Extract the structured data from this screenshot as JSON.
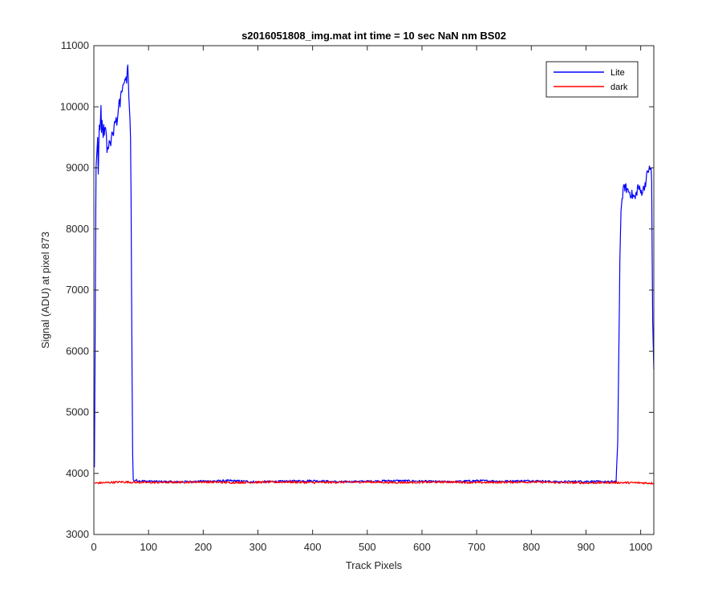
{
  "chart_data": {
    "type": "line",
    "title": "s2016051808_img.mat int time = 10 sec  NaN nm BS02",
    "xlabel": "Track Pixels",
    "ylabel": "Signal (ADU) at pixel 873",
    "xlim": [
      0,
      1024
    ],
    "ylim": [
      3000,
      11000
    ],
    "xticks": [
      0,
      100,
      200,
      300,
      400,
      500,
      600,
      700,
      800,
      900,
      1000
    ],
    "yticks": [
      3000,
      4000,
      5000,
      6000,
      7000,
      8000,
      9000,
      10000,
      11000
    ],
    "grid": false,
    "legend_position": "top-right",
    "series": [
      {
        "name": "Lite",
        "color": "#0000ff",
        "x": [
          1,
          4,
          7,
          8,
          9,
          10,
          11,
          12,
          13,
          14,
          15,
          16,
          17,
          18,
          19,
          20,
          22,
          24,
          26,
          28,
          30,
          32,
          34,
          36,
          38,
          40,
          42,
          44,
          46,
          48,
          50,
          52,
          54,
          56,
          58,
          60,
          62,
          64,
          66,
          67,
          68,
          69,
          70,
          71,
          72,
          73,
          74,
          76,
          80,
          100,
          150,
          200,
          250,
          300,
          350,
          400,
          450,
          500,
          550,
          600,
          650,
          700,
          750,
          800,
          850,
          900,
          940,
          955,
          958,
          960,
          962,
          964,
          966,
          968,
          970,
          975,
          980,
          985,
          990,
          995,
          1000,
          1005,
          1010,
          1012,
          1015,
          1017,
          1019,
          1020,
          1021,
          1022,
          1024
        ],
        "y": [
          4100,
          9000,
          9500,
          8900,
          9300,
          9700,
          9600,
          9800,
          10000,
          9500,
          9750,
          9600,
          9550,
          9650,
          9500,
          9600,
          9650,
          9300,
          9350,
          9400,
          9350,
          9500,
          9600,
          9550,
          9700,
          9800,
          9750,
          9900,
          10100,
          10000,
          10300,
          10200,
          10400,
          10350,
          10500,
          10450,
          10700,
          10200,
          9800,
          9500,
          8500,
          7000,
          5500,
          4300,
          3900,
          3880,
          3870,
          3890,
          3880,
          3870,
          3860,
          3870,
          3880,
          3860,
          3870,
          3880,
          3860,
          3870,
          3880,
          3870,
          3860,
          3880,
          3870,
          3880,
          3860,
          3870,
          3860,
          3870,
          4500,
          6000,
          7500,
          8300,
          8500,
          8600,
          8700,
          8650,
          8600,
          8550,
          8500,
          8700,
          8600,
          8650,
          8800,
          8900,
          9000,
          8950,
          9000,
          8800,
          7500,
          6500,
          5700
        ]
      },
      {
        "name": "dark",
        "color": "#ff0000",
        "x": [
          1,
          50,
          100,
          150,
          200,
          250,
          300,
          350,
          400,
          450,
          500,
          550,
          600,
          650,
          700,
          750,
          800,
          850,
          900,
          950,
          1000,
          1024
        ],
        "y": [
          3840,
          3860,
          3850,
          3855,
          3860,
          3850,
          3855,
          3860,
          3850,
          3855,
          3860,
          3850,
          3855,
          3860,
          3850,
          3855,
          3860,
          3850,
          3845,
          3850,
          3845,
          3840
        ]
      }
    ]
  }
}
